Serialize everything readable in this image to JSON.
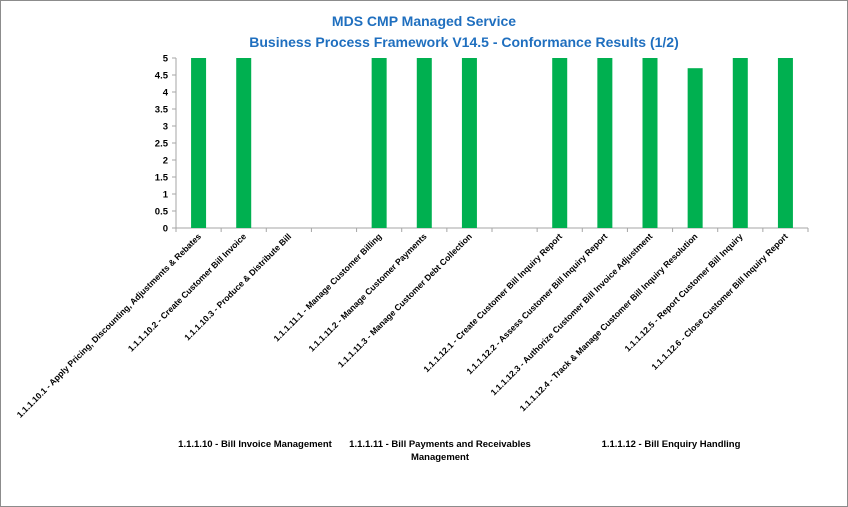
{
  "chart_data": {
    "type": "bar",
    "title": "MDS CMP Managed Service",
    "subtitle": "Business Process Framework V14.5 - Conformance Results (1/2)",
    "ylim": [
      0,
      5
    ],
    "yticks": [
      "0",
      "0.5",
      "1",
      "1.5",
      "2",
      "2.5",
      "3",
      "3.5",
      "4",
      "4.5",
      "5"
    ],
    "bar_color": "#00b050",
    "grid": false,
    "categories": [
      "1.1.1.10.1 - Apply Pricing, Discounting, Adjustments & Rebates",
      "1.1.1.10.2 - Create Customer Bill Invoice",
      "1.1.1.10.3 - Produce & Distribute Bill",
      "",
      "1.1.1.11.1 - Manage Customer Billing",
      "1.1.1.11.2 - Manage Customer Payments",
      "1.1.1.11.3 - Manage Customer Debt Collection",
      "",
      "1.1.1.12.1 - Create Customer Bill Inquiry Report",
      "1.1.1.12.2 - Assess Customer Bill Inquiry Report",
      "1.1.1.12.3 - Authorize Customer Bill Invoice Adjustment",
      "1.1.1.12.4 - Track & Manage Customer Bill Inquiry Resolution",
      "1.1.1.12.5 - Report Customer Bill Inquiry",
      "1.1.1.12.6 - Close Customer Bill Inquiry Report"
    ],
    "values": [
      5,
      5,
      null,
      null,
      5,
      5,
      5,
      null,
      5,
      5,
      5,
      4.7,
      5,
      5
    ],
    "groups": [
      {
        "lines": [
          "1.1.1.10 - Bill Invoice Management"
        ]
      },
      {
        "lines": [
          "1.1.1.11 - Bill Payments and Receivables",
          "Management"
        ]
      },
      {
        "lines": [
          "1.1.1.12 - Bill Enquiry Handling"
        ]
      }
    ]
  }
}
